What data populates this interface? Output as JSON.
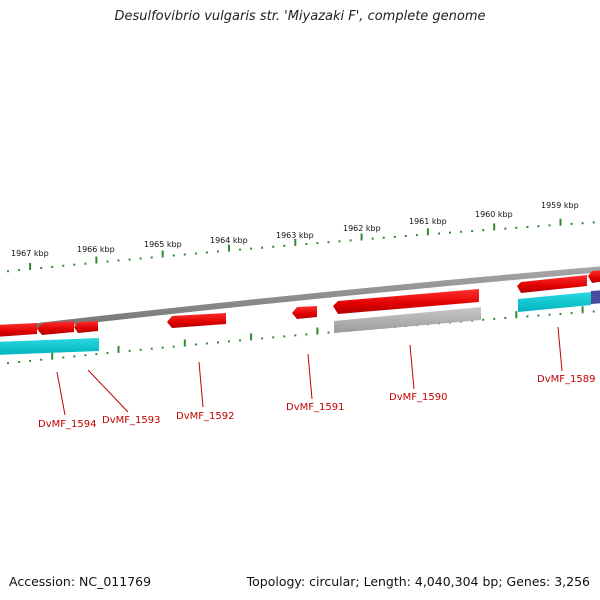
{
  "title": "Desulfovibrio vulgaris str. 'Miyazaki F', complete genome",
  "footer": {
    "accession": "Accession: NC_011769",
    "topology": "Topology: circular; Length: 4,040,304 bp; Genes: 3,256"
  },
  "kbp_labels": [
    "1967 kbp",
    "1966 kbp",
    "1965 kbp",
    "1964 kbp",
    "1963 kbp",
    "1962 kbp",
    "1961 kbp",
    "1960 kbp",
    "1959 kbp"
  ],
  "gene_labels": [
    "DvMF_1594",
    "DvMF_1593",
    "DvMF_1592",
    "DvMF_1591",
    "DvMF_1590",
    "DvMF_1589"
  ],
  "colors": {
    "gene_forward": "#ee0000",
    "gene_reverse": "#ee0000",
    "cds_cyan": "#00c8d2",
    "cds_gray": "#a8a8a8",
    "cds_navy": "#4a4aa0",
    "backbone": "#8a8a8a",
    "ticks": "#2e8b2e",
    "label_text": "#c00000"
  }
}
